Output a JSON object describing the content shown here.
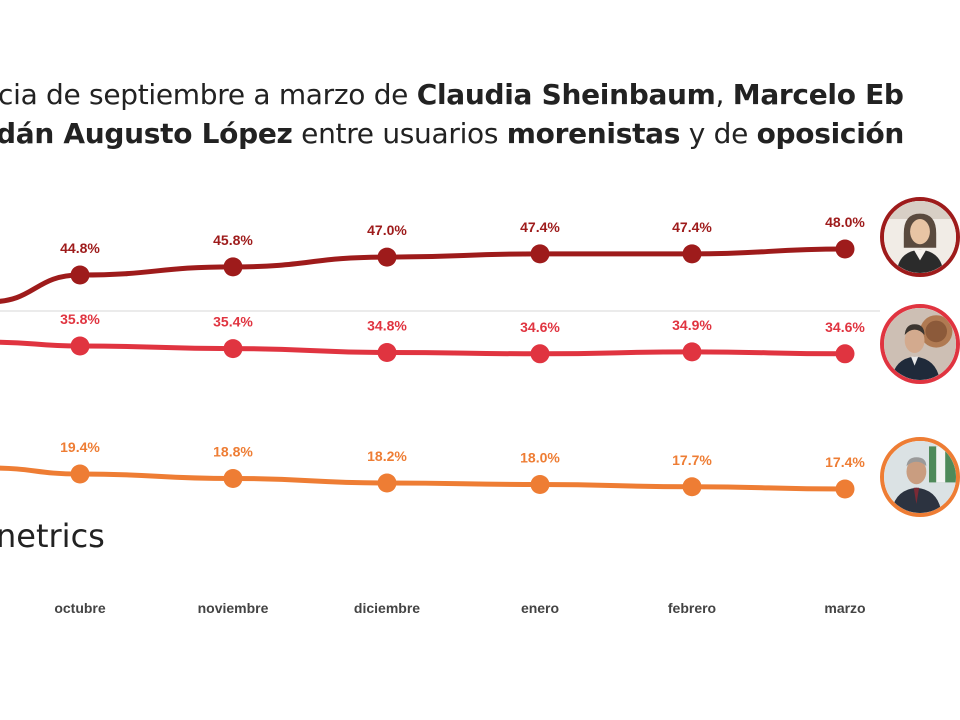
{
  "title": {
    "line1": [
      {
        "text": "cia de septiembre a marzo de ",
        "bold": false
      },
      {
        "text": "Claudia Sheinbaum",
        "bold": true
      },
      {
        "text": ", ",
        "bold": false
      },
      {
        "text": "Marcelo Eb",
        "bold": true
      }
    ],
    "line2": [
      {
        "text": "dán Augusto López",
        "bold": true
      },
      {
        "text": " entre usuarios ",
        "bold": false
      },
      {
        "text": "morenistas",
        "bold": true
      },
      {
        "text": " y de ",
        "bold": false
      },
      {
        "text": "oposición",
        "bold": true
      }
    ]
  },
  "brand": "netrics",
  "avatars": [
    {
      "name": "sheinbaum-avatar",
      "color": "#9e1b1b"
    },
    {
      "name": "ebrard-avatar",
      "color": "#e03440"
    },
    {
      "name": "adan-augusto-avatar",
      "color": "#ee7d34"
    }
  ],
  "chart_data": {
    "type": "line",
    "categories": [
      "octubre",
      "noviembre",
      "diciembre",
      "enero",
      "febrero",
      "marzo"
    ],
    "series": [
      {
        "color": "#9e1b1b",
        "values": [
          44.8,
          45.8,
          47.0,
          47.4,
          47.4,
          48.0
        ],
        "labels": [
          "44.8%",
          "45.8%",
          "47.0%",
          "47.4%",
          "47.4%",
          "48.0%"
        ]
      },
      {
        "color": "#e03440",
        "values": [
          35.8,
          35.4,
          34.8,
          34.6,
          34.9,
          34.6
        ],
        "labels": [
          "35.8%",
          "35.4%",
          "34.8%",
          "34.6%",
          "34.9%",
          "34.6%"
        ]
      },
      {
        "color": "#ee7d34",
        "values": [
          19.4,
          18.8,
          18.2,
          18.0,
          17.7,
          17.4
        ],
        "labels": [
          "19.4%",
          "18.8%",
          "18.2%",
          "18.0%",
          "17.7%",
          "17.4%"
        ]
      }
    ],
    "grid": true,
    "legend": "right (photos)"
  }
}
